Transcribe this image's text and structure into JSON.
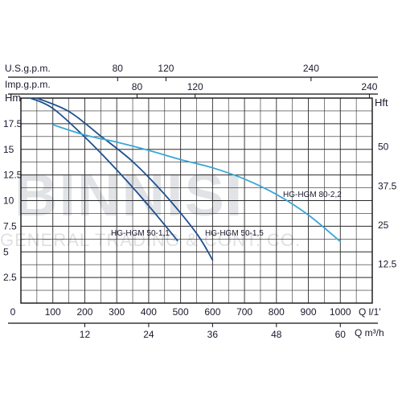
{
  "chart_data": {
    "type": "line",
    "colors": {
      "dark": "#1e4f8f",
      "light": "#3aa6d6",
      "grid": "#2a2a2a"
    },
    "axes": {
      "q_lpm": {
        "label": "Q l/1'",
        "ticks": [
          "0",
          "100",
          "200",
          "300",
          "400",
          "500",
          "600",
          "700",
          "800",
          "900",
          "1000"
        ],
        "range": [
          0,
          1100
        ]
      },
      "q_m3h": {
        "label": "Q m³/h",
        "ticks": [
          "12",
          "24",
          "36",
          "48",
          "60"
        ]
      },
      "us_gpm": {
        "label": "U.S.g.p.m.",
        "ticks": [
          "80",
          "120",
          "240"
        ]
      },
      "imp_gpm": {
        "label": "Imp.g.p.m.",
        "ticks": [
          "80",
          "120",
          "240"
        ]
      },
      "hm": {
        "label": "Hm",
        "ticks": [
          "2.5",
          "5",
          "7.5",
          "10",
          "12.5",
          "15",
          "17.5"
        ],
        "range": [
          0,
          20
        ]
      },
      "hft": {
        "label": "Hft",
        "ticks": [
          "12.5",
          "25",
          "37.5",
          "50"
        ]
      }
    },
    "series": [
      {
        "name": "HG-HGM 50-1,1",
        "color": "dark",
        "x": [
          30,
          100,
          200,
          300,
          400,
          490
        ],
        "y": [
          20,
          19,
          16.2,
          13,
          9.5,
          6.1
        ]
      },
      {
        "name": "HG-HGM 50-1,5",
        "color": "dark",
        "x": [
          50,
          150,
          250,
          350,
          450,
          550,
          600
        ],
        "y": [
          20,
          18.7,
          16.3,
          13.8,
          10.6,
          6.8,
          4.2
        ]
      },
      {
        "name": "HG-HGM 80-2,2",
        "color": "light",
        "x": [
          100,
          200,
          300,
          400,
          500,
          600,
          700,
          800,
          900,
          1000
        ],
        "y": [
          17.4,
          16.4,
          15.7,
          14.9,
          14.0,
          13.2,
          12.1,
          10.6,
          8.6,
          6.0
        ]
      }
    ],
    "curve_labels": [
      "HG-HGM 50-1,1",
      "HG-HGM 50-1,5",
      "HG-HGM 80-2,2"
    ],
    "watermark": {
      "text": "BINNISI",
      "subtext": "GENERAL TRADING & CONT. CO."
    },
    "grid": true
  }
}
